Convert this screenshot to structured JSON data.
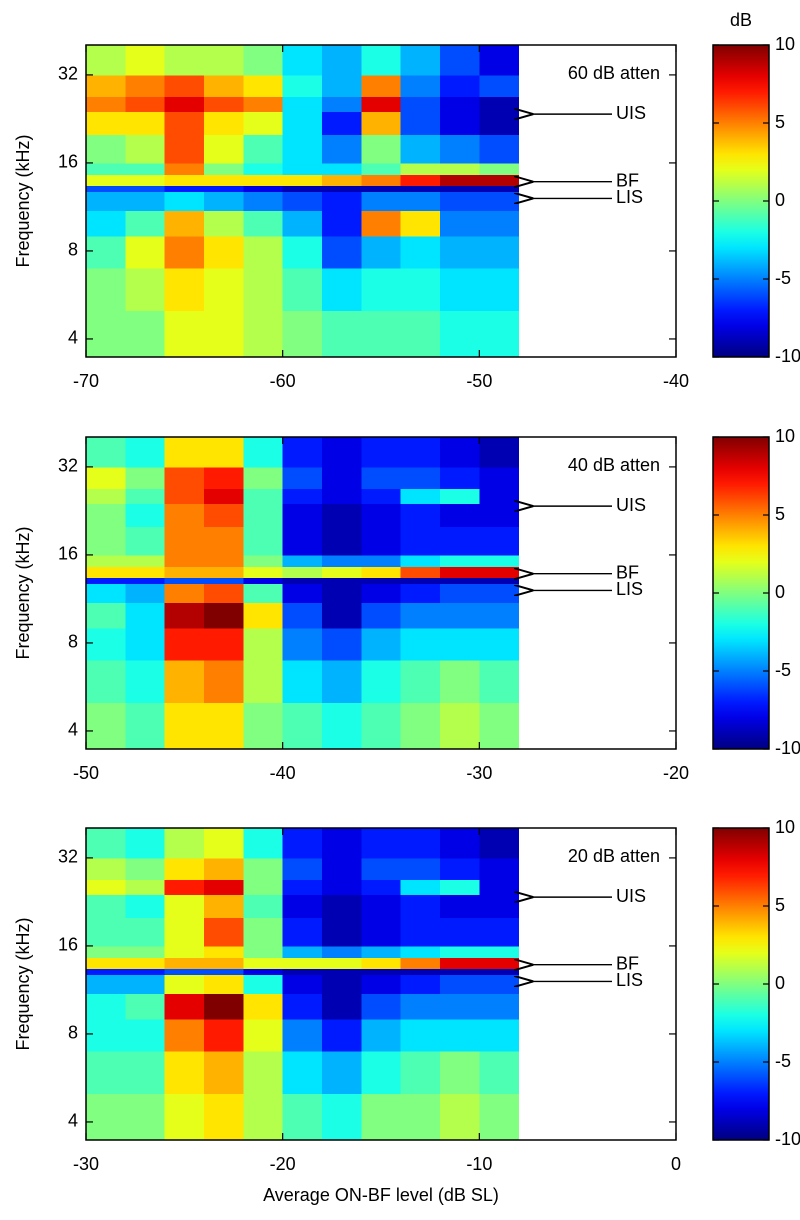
{
  "chart_data": [
    {
      "type": "heatmap",
      "colormap": "jet",
      "log_y": true,
      "annotation": "60 dB atten",
      "ylabel": "Frequency (kHz)",
      "arrows": [
        {
          "label": "UIS",
          "y": 23.5
        },
        {
          "label": "BF",
          "y": 13.8
        },
        {
          "label": "LIS",
          "y": 12.1
        }
      ],
      "xlim": [
        -70,
        -40
      ],
      "xticks": [
        -70,
        -60,
        -50,
        -40
      ],
      "ylim": [
        3.47,
        40.5
      ],
      "yticks": [
        4,
        8,
        16,
        32
      ],
      "x_edges": [
        -70,
        -68,
        -66,
        -64,
        -62,
        -60,
        -58,
        -56,
        -54,
        -52,
        -50,
        -48
      ],
      "y_edges": [
        3.47,
        5,
        7,
        9,
        11,
        12.8,
        13.4,
        14.6,
        16,
        20,
        24,
        27,
        32,
        40.5
      ],
      "values": [
        [
          0,
          0,
          2,
          2,
          1,
          0,
          -1,
          -1,
          -1,
          -2,
          -2
        ],
        [
          0,
          1,
          3,
          2,
          1,
          -1,
          -3,
          -2,
          -2,
          -3,
          -3
        ],
        [
          -1,
          2,
          5,
          3,
          1,
          -2,
          -6,
          -4,
          -3,
          -4,
          -4
        ],
        [
          -3,
          -1,
          4,
          1,
          -1,
          -4,
          -7,
          5,
          3,
          -5,
          -5
        ],
        [
          -4,
          -4,
          -3,
          -4,
          -5,
          -6,
          -7,
          -5,
          -5,
          -6,
          -6
        ],
        [
          -6,
          -6,
          -7,
          -7,
          -8,
          -9,
          -9,
          -9,
          -9,
          -9,
          -9
        ],
        [
          2,
          2,
          3,
          3,
          3,
          3,
          4,
          5,
          7,
          9,
          9
        ],
        [
          -1,
          -1,
          5,
          0,
          -2,
          -3,
          -3,
          -1,
          1,
          1,
          0
        ],
        [
          0,
          1,
          6,
          2,
          -1,
          -3,
          -5,
          0,
          -4,
          -5,
          -6
        ],
        [
          3,
          3,
          6,
          3,
          2,
          -3,
          -7,
          4,
          -6,
          -8,
          -9
        ],
        [
          5,
          6,
          8,
          6,
          5,
          -3,
          -5,
          8,
          -6,
          -8,
          -9
        ],
        [
          4,
          5,
          6,
          4,
          3,
          -2,
          -4,
          5,
          -5,
          -7,
          -6
        ],
        [
          1,
          2,
          1,
          1,
          0,
          -3,
          -4,
          -2,
          -4,
          -6,
          -8
        ]
      ],
      "colorbar": {
        "label": "dB",
        "clim": [
          -10,
          10
        ],
        "ticks": [
          -10,
          -5,
          0,
          5,
          10
        ]
      }
    },
    {
      "type": "heatmap",
      "colormap": "jet",
      "log_y": true,
      "annotation": "40 dB atten",
      "ylabel": "Frequency (kHz)",
      "arrows": [
        {
          "label": "UIS",
          "y": 23.5
        },
        {
          "label": "BF",
          "y": 13.8
        },
        {
          "label": "LIS",
          "y": 12.1
        }
      ],
      "xlim": [
        -50,
        -20
      ],
      "xticks": [
        -50,
        -40,
        -30,
        -20
      ],
      "ylim": [
        3.47,
        40.5
      ],
      "yticks": [
        4,
        8,
        16,
        32
      ],
      "x_edges": [
        -50,
        -48,
        -46,
        -44,
        -42,
        -40,
        -38,
        -36,
        -34,
        -32,
        -30,
        -28
      ],
      "y_edges": [
        3.47,
        5,
        7,
        9,
        11,
        12.8,
        13.4,
        14.6,
        16,
        20,
        24,
        27,
        32,
        40.5
      ],
      "values": [
        [
          0,
          -1,
          3,
          3,
          0,
          -1,
          -2,
          -1,
          0,
          1,
          0
        ],
        [
          -1,
          -2,
          4,
          5,
          1,
          -3,
          -4,
          -2,
          -1,
          0,
          -1
        ],
        [
          -2,
          -3,
          7,
          7,
          1,
          -5,
          -6,
          -4,
          -3,
          -3,
          -3
        ],
        [
          -1,
          -3,
          9,
          10,
          3,
          -6,
          -9,
          -6,
          -5,
          -5,
          -5
        ],
        [
          -3,
          -4,
          5,
          6,
          -1,
          -8,
          -9,
          -8,
          -7,
          -6,
          -6
        ],
        [
          -7,
          -7,
          -6,
          -6,
          -8,
          -9,
          -9,
          -9,
          -9,
          -9,
          -9
        ],
        [
          3,
          3,
          4,
          4,
          2,
          1,
          2,
          3,
          6,
          8,
          8
        ],
        [
          1,
          1,
          5,
          5,
          0,
          -4,
          -5,
          -5,
          -3,
          -2,
          -2
        ],
        [
          0,
          -1,
          5,
          5,
          -1,
          -8,
          -9,
          -8,
          -7,
          -7,
          -7
        ],
        [
          0,
          -2,
          5,
          6,
          -1,
          -8,
          -9,
          -8,
          -7,
          -8,
          -8
        ],
        [
          1,
          -1,
          6,
          8,
          -1,
          -7,
          -8,
          -7,
          -3,
          -2,
          -8
        ],
        [
          2,
          0,
          6,
          7,
          0,
          -6,
          -8,
          -6,
          -6,
          -7,
          -8
        ],
        [
          -1,
          -2,
          3,
          3,
          -2,
          -7,
          -8,
          -7,
          -7,
          -8,
          -9
        ]
      ],
      "colorbar": {
        "clim": [
          -10,
          10
        ],
        "ticks": [
          -10,
          -5,
          0,
          5,
          10
        ]
      }
    },
    {
      "type": "heatmap",
      "colormap": "jet",
      "log_y": true,
      "annotation": "20 dB atten",
      "ylabel": "Frequency (kHz)",
      "xlabel": "Average ON-BF level (dB SL)",
      "arrows": [
        {
          "label": "UIS",
          "y": 23.5
        },
        {
          "label": "BF",
          "y": 13.8
        },
        {
          "label": "LIS",
          "y": 12.1
        }
      ],
      "xlim": [
        -30,
        0
      ],
      "xticks": [
        -30,
        -20,
        -10,
        0
      ],
      "ylim": [
        3.47,
        40.5
      ],
      "yticks": [
        4,
        8,
        16,
        32
      ],
      "x_edges": [
        -30,
        -28,
        -26,
        -24,
        -22,
        -20,
        -18,
        -16,
        -14,
        -12,
        -10,
        -8
      ],
      "y_edges": [
        3.47,
        5,
        7,
        9,
        11,
        12.8,
        13.4,
        14.6,
        16,
        20,
        24,
        27,
        32,
        40.5
      ],
      "values": [
        [
          0,
          0,
          2,
          3,
          1,
          -1,
          -2,
          0,
          0,
          1,
          0
        ],
        [
          -1,
          -1,
          3,
          4,
          1,
          -3,
          -4,
          -2,
          -1,
          0,
          -1
        ],
        [
          -2,
          -2,
          5,
          7,
          2,
          -5,
          -7,
          -4,
          -3,
          -3,
          -3
        ],
        [
          -2,
          -1,
          8,
          10,
          3,
          -7,
          -9,
          -6,
          -5,
          -5,
          -5
        ],
        [
          -4,
          -4,
          2,
          3,
          -2,
          -8,
          -9,
          -8,
          -7,
          -6,
          -6
        ],
        [
          -7,
          -7,
          -6,
          -6,
          -8,
          -9,
          -9,
          -9,
          -9,
          -9,
          -9
        ],
        [
          3,
          3,
          4,
          4,
          2,
          2,
          2,
          3,
          5,
          8,
          8
        ],
        [
          0,
          0,
          2,
          3,
          0,
          -4,
          -5,
          -4,
          -3,
          -2,
          -2
        ],
        [
          -1,
          -1,
          2,
          6,
          0,
          -7,
          -9,
          -8,
          -7,
          -7,
          -7
        ],
        [
          -1,
          -2,
          2,
          4,
          -1,
          -8,
          -9,
          -8,
          -7,
          -8,
          -8
        ],
        [
          2,
          1,
          7,
          8,
          0,
          -7,
          -8,
          -7,
          -3,
          -2,
          -8
        ],
        [
          1,
          0,
          3,
          4,
          0,
          -6,
          -8,
          -6,
          -6,
          -7,
          -8
        ],
        [
          -1,
          -2,
          1,
          2,
          -2,
          -7,
          -8,
          -7,
          -7,
          -8,
          -9
        ]
      ],
      "colorbar": {
        "clim": [
          -10,
          10
        ],
        "ticks": [
          -10,
          -5,
          0,
          5,
          10
        ]
      }
    }
  ]
}
